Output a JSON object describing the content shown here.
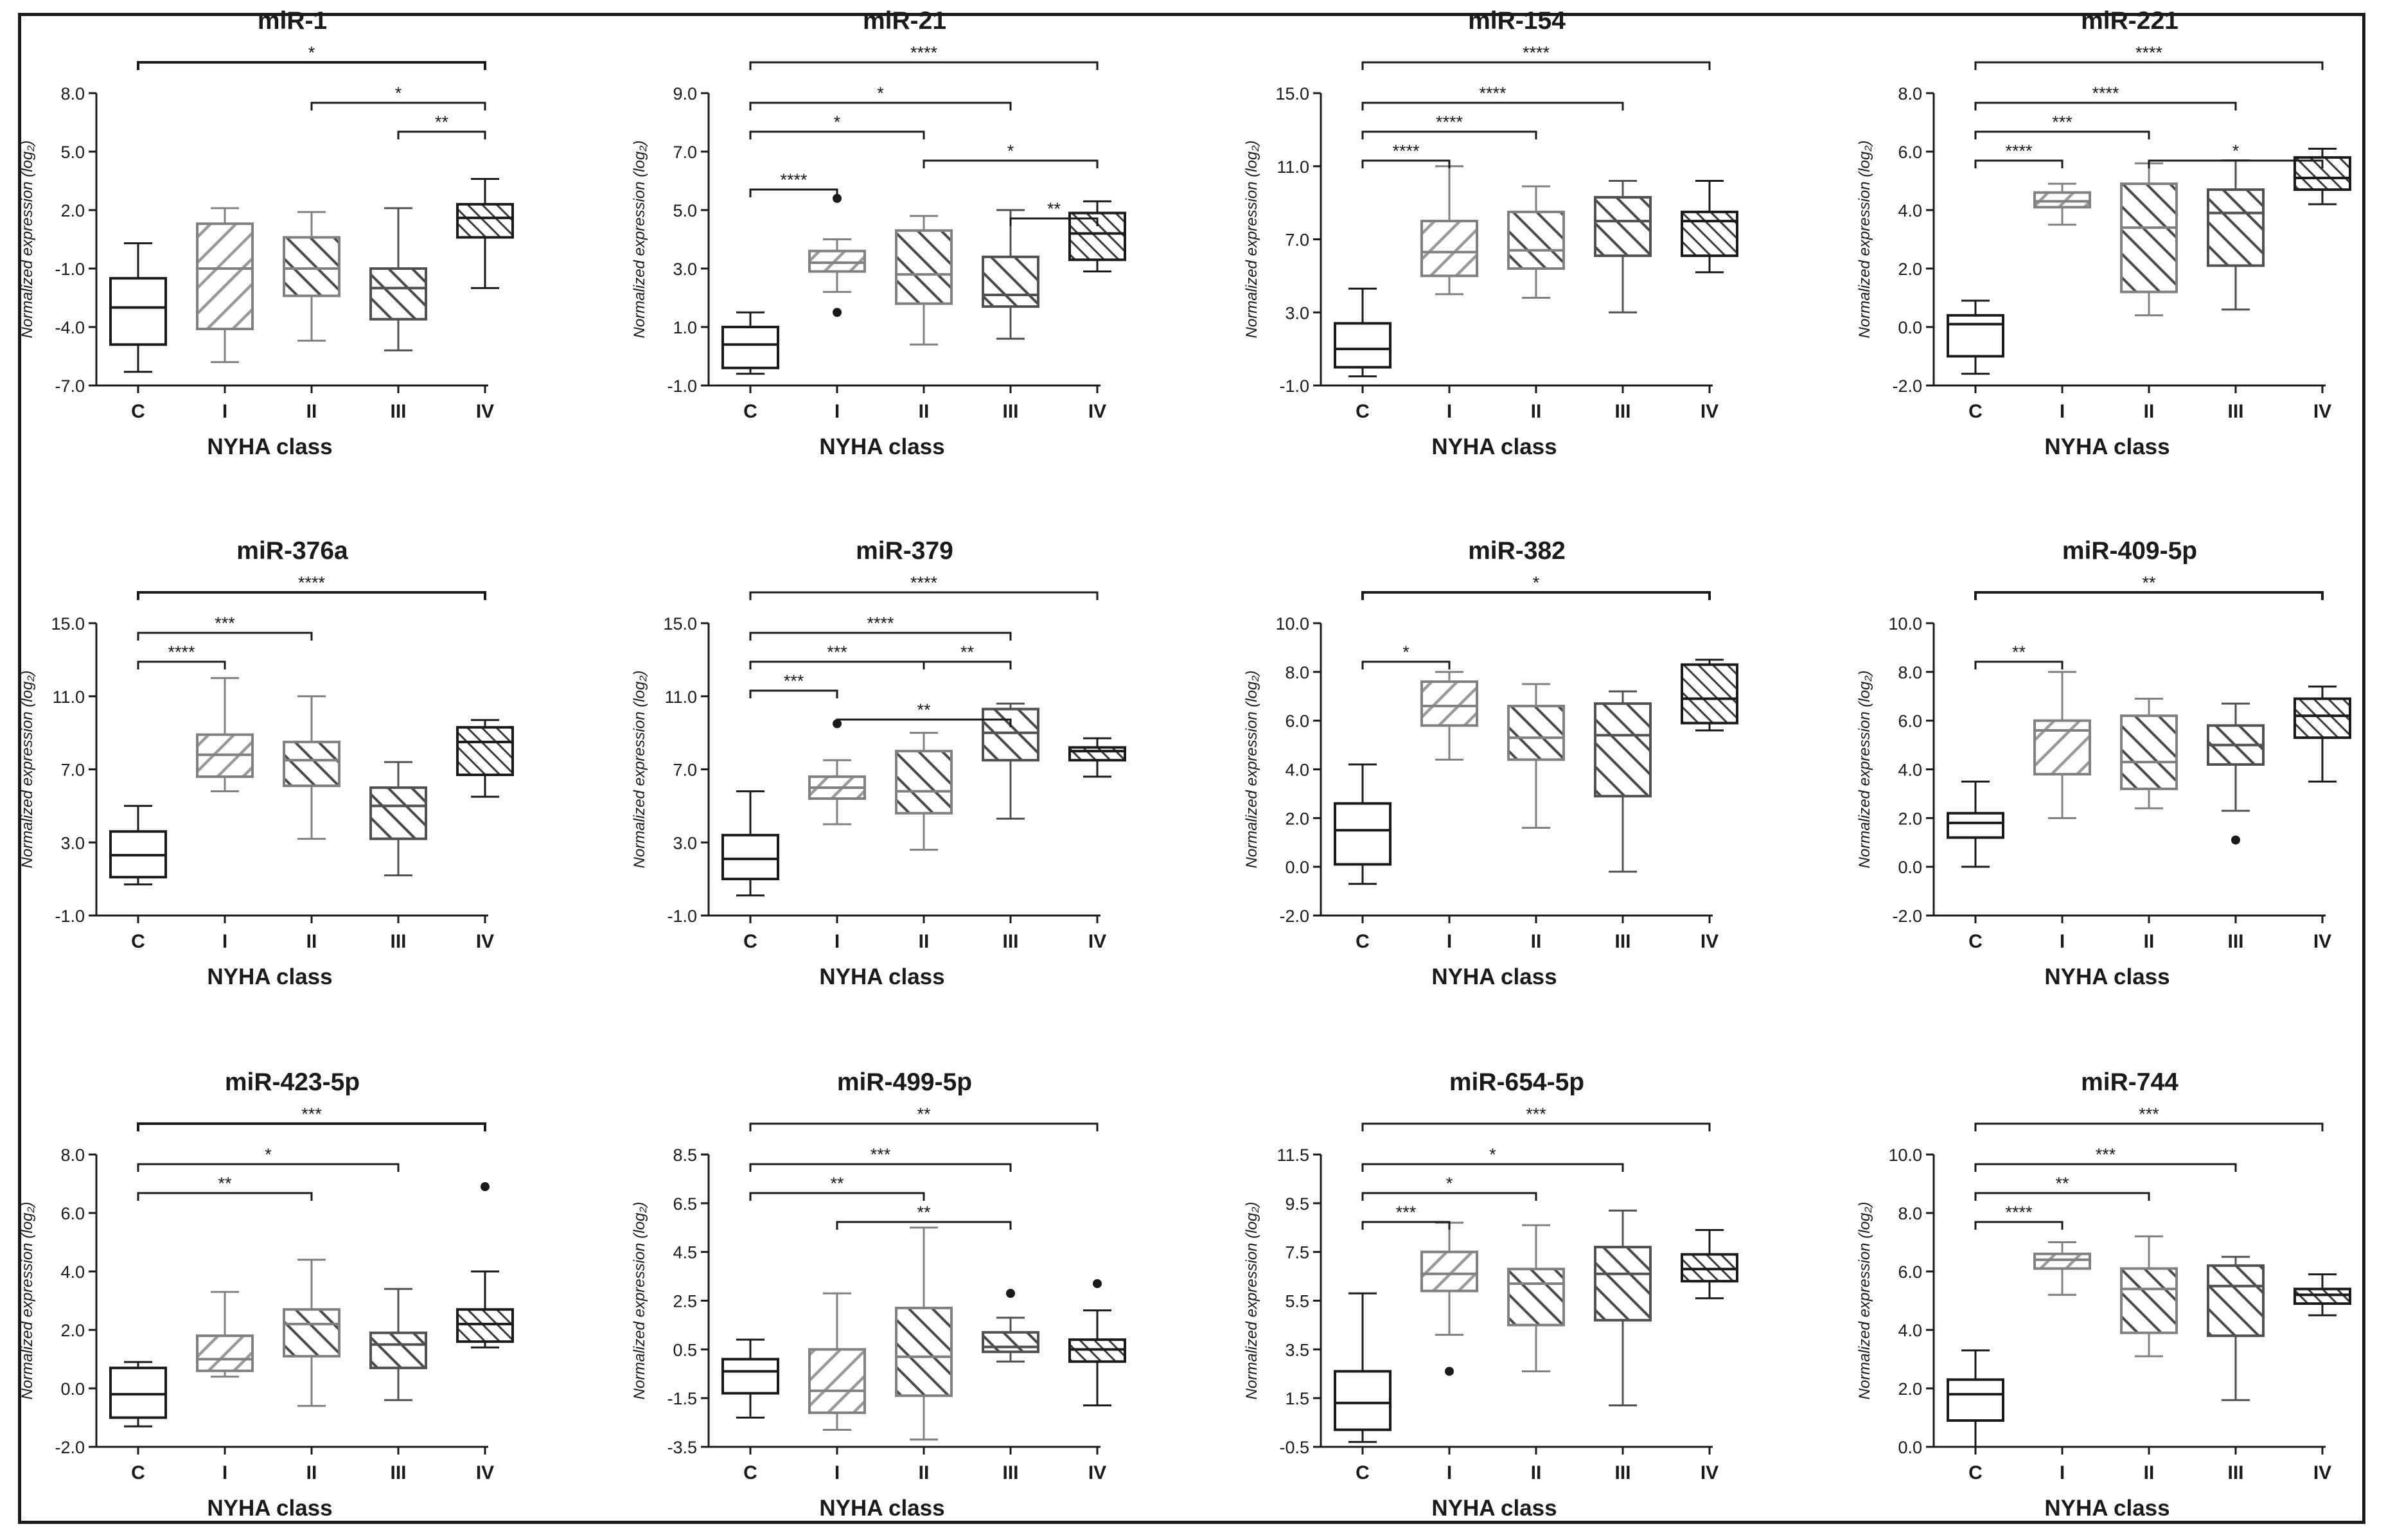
{
  "figure": {
    "colors": {
      "ink": "#1a1a1a",
      "gray": "#808080",
      "hatch": "#3a3a3a"
    }
  },
  "chart_data": [
    {
      "type": "box",
      "title": "miR-1",
      "xlabel": "NYHA class",
      "ylabel": "Normalized expression (log₂)",
      "categories": [
        "C",
        "I",
        "II",
        "III",
        "IV"
      ],
      "yticks": [
        "-7.0",
        "-4.0",
        "-1.0",
        "2.0",
        "5.0",
        "8.0"
      ],
      "ylim": [
        -7,
        8
      ],
      "boxes": [
        {
          "min": -6.3,
          "q1": -4.9,
          "median": -3.0,
          "q3": -1.5,
          "max": 0.3
        },
        {
          "min": -5.8,
          "q1": -4.1,
          "median": -1.0,
          "q3": 1.3,
          "max": 2.1
        },
        {
          "min": -4.7,
          "q1": -2.4,
          "median": -1.0,
          "q3": 0.6,
          "max": 1.9
        },
        {
          "min": -5.2,
          "q1": -3.6,
          "median": -2.0,
          "q3": -1.0,
          "max": 2.1
        },
        {
          "min": -2.0,
          "q1": 0.6,
          "median": 1.6,
          "q3": 2.3,
          "max": 3.6
        }
      ],
      "outliers": [],
      "comparisons": [
        {
          "from": 0,
          "to": 4,
          "label": "*",
          "tier": 0
        },
        {
          "from": 2,
          "to": 4,
          "label": "*",
          "tier": 1
        },
        {
          "from": 3,
          "to": 4,
          "label": "**",
          "tier": 2
        }
      ]
    },
    {
      "type": "box",
      "title": "miR-21",
      "xlabel": "NYHA class",
      "ylabel": "Normalized expression (log₂)",
      "categories": [
        "C",
        "I",
        "II",
        "III",
        "IV"
      ],
      "yticks": [
        "-1.0",
        "1.0",
        "3.0",
        "5.0",
        "7.0",
        "9.0"
      ],
      "ylim": [
        -1,
        9
      ],
      "boxes": [
        {
          "min": -0.6,
          "q1": -0.4,
          "median": 0.4,
          "q3": 1.0,
          "max": 1.5
        },
        {
          "min": 2.2,
          "q1": 2.9,
          "median": 3.2,
          "q3": 3.6,
          "max": 4.0
        },
        {
          "min": 0.4,
          "q1": 1.8,
          "median": 2.8,
          "q3": 4.3,
          "max": 4.8
        },
        {
          "min": 0.6,
          "q1": 1.7,
          "median": 2.1,
          "q3": 3.4,
          "max": 5.0
        },
        {
          "min": 2.9,
          "q1": 3.3,
          "median": 4.2,
          "q3": 4.9,
          "max": 5.3
        }
      ],
      "outliers": [
        {
          "cat": 1,
          "value": 5.4
        },
        {
          "cat": 1,
          "value": 1.5
        }
      ],
      "comparisons": [
        {
          "from": 0,
          "to": 4,
          "label": "****",
          "tier": 0
        },
        {
          "from": 0,
          "to": 3,
          "label": "*",
          "tier": 1
        },
        {
          "from": 0,
          "to": 2,
          "label": "*",
          "tier": 2
        },
        {
          "from": 2,
          "to": 4,
          "label": "*",
          "tier": 3
        },
        {
          "from": 0,
          "to": 1,
          "label": "****",
          "tier": 4
        },
        {
          "from": 3,
          "to": 4,
          "label": "**",
          "tier": 5
        }
      ]
    },
    {
      "type": "box",
      "title": "miR-154",
      "xlabel": "NYHA class",
      "ylabel": "Normalized expression (log₂)",
      "categories": [
        "C",
        "I",
        "II",
        "III",
        "IV"
      ],
      "yticks": [
        "-1.0",
        "3.0",
        "7.0",
        "11.0",
        "15.0"
      ],
      "ylim": [
        -1,
        15
      ],
      "boxes": [
        {
          "min": -0.5,
          "q1": 0.0,
          "median": 1.0,
          "q3": 2.4,
          "max": 4.3
        },
        {
          "min": 4.0,
          "q1": 5.0,
          "median": 6.3,
          "q3": 8.0,
          "max": 11.0
        },
        {
          "min": 3.8,
          "q1": 5.4,
          "median": 6.4,
          "q3": 8.5,
          "max": 9.9
        },
        {
          "min": 3.0,
          "q1": 6.1,
          "median": 8.0,
          "q3": 9.3,
          "max": 10.2
        },
        {
          "min": 5.2,
          "q1": 6.1,
          "median": 8.0,
          "q3": 8.5,
          "max": 10.2
        }
      ],
      "outliers": [],
      "comparisons": [
        {
          "from": 0,
          "to": 4,
          "label": "****",
          "tier": 0
        },
        {
          "from": 0,
          "to": 3,
          "label": "****",
          "tier": 1
        },
        {
          "from": 0,
          "to": 2,
          "label": "****",
          "tier": 2
        },
        {
          "from": 0,
          "to": 1,
          "label": "****",
          "tier": 3
        }
      ]
    },
    {
      "type": "box",
      "title": "miR-221",
      "xlabel": "NYHA class",
      "ylabel": "Normalized expression (log₂)",
      "categories": [
        "C",
        "I",
        "II",
        "III",
        "IV"
      ],
      "yticks": [
        "-2.0",
        "0.0",
        "2.0",
        "4.0",
        "6.0",
        "8.0"
      ],
      "ylim": [
        -2,
        8
      ],
      "boxes": [
        {
          "min": -1.6,
          "q1": -1.0,
          "median": 0.1,
          "q3": 0.4,
          "max": 0.9
        },
        {
          "min": 3.5,
          "q1": 4.1,
          "median": 4.3,
          "q3": 4.6,
          "max": 4.9
        },
        {
          "min": 0.4,
          "q1": 1.2,
          "median": 3.4,
          "q3": 4.9,
          "max": 5.6
        },
        {
          "min": 0.6,
          "q1": 2.1,
          "median": 3.9,
          "q3": 4.7,
          "max": 5.7
        },
        {
          "min": 4.2,
          "q1": 4.7,
          "median": 5.1,
          "q3": 5.8,
          "max": 6.1
        }
      ],
      "outliers": [],
      "comparisons": [
        {
          "from": 0,
          "to": 4,
          "label": "****",
          "tier": 0
        },
        {
          "from": 0,
          "to": 3,
          "label": "****",
          "tier": 1
        },
        {
          "from": 0,
          "to": 2,
          "label": "***",
          "tier": 2
        },
        {
          "from": 2,
          "to": 4,
          "label": "*",
          "tier": 3
        },
        {
          "from": 0,
          "to": 1,
          "label": "****",
          "tier": 3
        }
      ]
    },
    {
      "type": "box",
      "title": "miR-376a",
      "xlabel": "NYHA class",
      "ylabel": "Normalized expression (log₂)",
      "categories": [
        "C",
        "I",
        "II",
        "III",
        "IV"
      ],
      "yticks": [
        "-1.0",
        "3.0",
        "7.0",
        "11.0",
        "15.0"
      ],
      "ylim": [
        -1,
        15
      ],
      "boxes": [
        {
          "min": 0.7,
          "q1": 1.1,
          "median": 2.3,
          "q3": 3.6,
          "max": 5.0
        },
        {
          "min": 5.8,
          "q1": 6.6,
          "median": 7.8,
          "q3": 8.9,
          "max": 12.0
        },
        {
          "min": 3.2,
          "q1": 6.1,
          "median": 7.5,
          "q3": 8.5,
          "max": 11.0
        },
        {
          "min": 1.2,
          "q1": 3.2,
          "median": 5.0,
          "q3": 6.0,
          "max": 7.4
        },
        {
          "min": 5.5,
          "q1": 6.7,
          "median": 8.5,
          "q3": 9.3,
          "max": 9.7
        }
      ],
      "outliers": [],
      "comparisons": [
        {
          "from": 0,
          "to": 4,
          "label": "****",
          "tier": 0
        },
        {
          "from": 0,
          "to": 2,
          "label": "***",
          "tier": 1
        },
        {
          "from": 0,
          "to": 1,
          "label": "****",
          "tier": 2
        }
      ]
    },
    {
      "type": "box",
      "title": "miR-379",
      "xlabel": "NYHA class",
      "ylabel": "Normalized expression (log₂)",
      "categories": [
        "C",
        "I",
        "II",
        "III",
        "IV"
      ],
      "yticks": [
        "-1.0",
        "3.0",
        "7.0",
        "11.0",
        "15.0"
      ],
      "ylim": [
        -1,
        15
      ],
      "boxes": [
        {
          "min": 0.1,
          "q1": 1.0,
          "median": 2.1,
          "q3": 3.4,
          "max": 5.8
        },
        {
          "min": 4.0,
          "q1": 5.4,
          "median": 6.0,
          "q3": 6.6,
          "max": 7.5
        },
        {
          "min": 2.6,
          "q1": 4.6,
          "median": 5.8,
          "q3": 8.0,
          "max": 9.0
        },
        {
          "min": 4.3,
          "q1": 7.5,
          "median": 9.0,
          "q3": 10.3,
          "max": 10.6
        },
        {
          "min": 6.6,
          "q1": 7.5,
          "median": 8.0,
          "q3": 8.2,
          "max": 8.7
        }
      ],
      "outliers": [
        {
          "cat": 1,
          "value": 9.5
        }
      ],
      "comparisons": [
        {
          "from": 0,
          "to": 4,
          "label": "****",
          "tier": 0
        },
        {
          "from": 0,
          "to": 3,
          "label": "****",
          "tier": 1
        },
        {
          "from": 0,
          "to": 2,
          "label": "***",
          "tier": 2
        },
        {
          "from": 2,
          "to": 3,
          "label": "**",
          "tier": 2
        },
        {
          "from": 0,
          "to": 1,
          "label": "***",
          "tier": 3
        },
        {
          "from": 1,
          "to": 3,
          "label": "**",
          "tier": 4
        }
      ]
    },
    {
      "type": "box",
      "title": "miR-382",
      "xlabel": "NYHA class",
      "ylabel": "Normalized expression (log₂)",
      "categories": [
        "C",
        "I",
        "II",
        "III",
        "IV"
      ],
      "yticks": [
        "-2.0",
        "0.0",
        "2.0",
        "4.0",
        "6.0",
        "8.0",
        "10.0"
      ],
      "ylim": [
        -2,
        10
      ],
      "boxes": [
        {
          "min": -0.7,
          "q1": 0.1,
          "median": 1.5,
          "q3": 2.6,
          "max": 4.2
        },
        {
          "min": 4.4,
          "q1": 5.8,
          "median": 6.6,
          "q3": 7.6,
          "max": 8.0
        },
        {
          "min": 1.6,
          "q1": 4.4,
          "median": 5.3,
          "q3": 6.6,
          "max": 7.5
        },
        {
          "min": -0.2,
          "q1": 2.9,
          "median": 5.4,
          "q3": 6.7,
          "max": 7.2
        },
        {
          "min": 5.6,
          "q1": 5.9,
          "median": 6.9,
          "q3": 8.3,
          "max": 8.5
        }
      ],
      "outliers": [],
      "comparisons": [
        {
          "from": 0,
          "to": 4,
          "label": "*",
          "tier": 0
        },
        {
          "from": 0,
          "to": 1,
          "label": "*",
          "tier": 2
        }
      ]
    },
    {
      "type": "box",
      "title": "miR-409-5p",
      "xlabel": "NYHA class",
      "ylabel": "Normalized expression (log₂)",
      "categories": [
        "C",
        "I",
        "II",
        "III",
        "IV"
      ],
      "yticks": [
        "-2.0",
        "0.0",
        "2.0",
        "4.0",
        "6.0",
        "8.0",
        "10.0"
      ],
      "ylim": [
        -2,
        10
      ],
      "boxes": [
        {
          "min": 0.0,
          "q1": 1.2,
          "median": 1.8,
          "q3": 2.2,
          "max": 3.5
        },
        {
          "min": 2.0,
          "q1": 3.8,
          "median": 5.6,
          "q3": 6.0,
          "max": 8.0
        },
        {
          "min": 2.4,
          "q1": 3.2,
          "median": 4.3,
          "q3": 6.2,
          "max": 6.9
        },
        {
          "min": 2.3,
          "q1": 4.2,
          "median": 5.0,
          "q3": 5.8,
          "max": 6.7
        },
        {
          "min": 3.5,
          "q1": 5.3,
          "median": 6.2,
          "q3": 6.9,
          "max": 7.4
        }
      ],
      "outliers": [
        {
          "cat": 3,
          "value": 1.1
        }
      ],
      "comparisons": [
        {
          "from": 0,
          "to": 4,
          "label": "**",
          "tier": 0
        },
        {
          "from": 0,
          "to": 1,
          "label": "**",
          "tier": 2
        }
      ]
    },
    {
      "type": "box",
      "title": "miR-423-5p",
      "xlabel": "NYHA class",
      "ylabel": "Normalized expression (log₂)",
      "categories": [
        "C",
        "I",
        "II",
        "III",
        "IV"
      ],
      "yticks": [
        "-2.0",
        "0.0",
        "2.0",
        "4.0",
        "6.0",
        "8.0"
      ],
      "ylim": [
        -2,
        8
      ],
      "boxes": [
        {
          "min": -1.3,
          "q1": -1.0,
          "median": -0.2,
          "q3": 0.7,
          "max": 0.9
        },
        {
          "min": 0.4,
          "q1": 0.6,
          "median": 1.0,
          "q3": 1.8,
          "max": 3.3
        },
        {
          "min": -0.6,
          "q1": 1.1,
          "median": 2.2,
          "q3": 2.7,
          "max": 4.4
        },
        {
          "min": -0.4,
          "q1": 0.7,
          "median": 1.5,
          "q3": 1.9,
          "max": 3.4
        },
        {
          "min": 1.4,
          "q1": 1.6,
          "median": 2.2,
          "q3": 2.7,
          "max": 4.0
        }
      ],
      "outliers": [
        {
          "cat": 4,
          "value": 6.9
        }
      ],
      "comparisons": [
        {
          "from": 0,
          "to": 4,
          "label": "***",
          "tier": 0
        },
        {
          "from": 0,
          "to": 3,
          "label": "*",
          "tier": 1
        },
        {
          "from": 0,
          "to": 2,
          "label": "**",
          "tier": 2
        }
      ]
    },
    {
      "type": "box",
      "title": "miR-499-5p",
      "xlabel": "NYHA class",
      "ylabel": "Normalized expression (log₂)",
      "categories": [
        "C",
        "I",
        "II",
        "III",
        "IV"
      ],
      "yticks": [
        "-3.5",
        "-1.5",
        "0.5",
        "2.5",
        "4.5",
        "6.5",
        "8.5"
      ],
      "ylim": [
        -3.5,
        8.5
      ],
      "boxes": [
        {
          "min": -2.3,
          "q1": -1.3,
          "median": -0.4,
          "q3": 0.1,
          "max": 0.9
        },
        {
          "min": -2.8,
          "q1": -2.1,
          "median": -1.2,
          "q3": 0.5,
          "max": 2.8
        },
        {
          "min": -3.2,
          "q1": -1.4,
          "median": 0.2,
          "q3": 2.2,
          "max": 5.5
        },
        {
          "min": 0.0,
          "q1": 0.4,
          "median": 0.6,
          "q3": 1.2,
          "max": 1.8
        },
        {
          "min": -1.8,
          "q1": 0.0,
          "median": 0.5,
          "q3": 0.9,
          "max": 2.1
        }
      ],
      "outliers": [
        {
          "cat": 3,
          "value": 2.8
        },
        {
          "cat": 4,
          "value": 3.2
        }
      ],
      "comparisons": [
        {
          "from": 0,
          "to": 4,
          "label": "**",
          "tier": 0
        },
        {
          "from": 0,
          "to": 3,
          "label": "***",
          "tier": 1
        },
        {
          "from": 0,
          "to": 2,
          "label": "**",
          "tier": 2
        },
        {
          "from": 1,
          "to": 3,
          "label": "**",
          "tier": 3
        }
      ]
    },
    {
      "type": "box",
      "title": "miR-654-5p",
      "xlabel": "NYHA class",
      "ylabel": "Normalized expression (log₂)",
      "categories": [
        "C",
        "I",
        "II",
        "III",
        "IV"
      ],
      "yticks": [
        "-0.5",
        "1.5",
        "3.5",
        "5.5",
        "7.5",
        "9.5",
        "11.5"
      ],
      "ylim": [
        -0.5,
        11.5
      ],
      "boxes": [
        {
          "min": -0.3,
          "q1": 0.2,
          "median": 1.3,
          "q3": 2.6,
          "max": 5.8
        },
        {
          "min": 4.1,
          "q1": 5.9,
          "median": 6.6,
          "q3": 7.5,
          "max": 8.7
        },
        {
          "min": 2.6,
          "q1": 4.5,
          "median": 6.2,
          "q3": 6.8,
          "max": 8.6
        },
        {
          "min": 1.2,
          "q1": 4.7,
          "median": 6.6,
          "q3": 7.7,
          "max": 9.2
        },
        {
          "min": 5.6,
          "q1": 6.3,
          "median": 6.8,
          "q3": 7.4,
          "max": 8.4
        }
      ],
      "outliers": [
        {
          "cat": 1,
          "value": 2.6
        }
      ],
      "comparisons": [
        {
          "from": 0,
          "to": 4,
          "label": "***",
          "tier": 0
        },
        {
          "from": 0,
          "to": 3,
          "label": "*",
          "tier": 1
        },
        {
          "from": 0,
          "to": 2,
          "label": "*",
          "tier": 2
        },
        {
          "from": 0,
          "to": 1,
          "label": "***",
          "tier": 3
        }
      ]
    },
    {
      "type": "box",
      "title": "miR-744",
      "xlabel": "NYHA class",
      "ylabel": "Normalized expression (log₂)",
      "categories": [
        "C",
        "I",
        "II",
        "III",
        "IV"
      ],
      "yticks": [
        "0.0",
        "2.0",
        "4.0",
        "6.0",
        "8.0",
        "10.0"
      ],
      "ylim": [
        0,
        10
      ],
      "boxes": [
        {
          "min": 0.0,
          "q1": 0.9,
          "median": 1.8,
          "q3": 2.3,
          "max": 3.3
        },
        {
          "min": 5.2,
          "q1": 6.1,
          "median": 6.4,
          "q3": 6.6,
          "max": 7.0
        },
        {
          "min": 3.1,
          "q1": 3.9,
          "median": 5.4,
          "q3": 6.1,
          "max": 7.2
        },
        {
          "min": 1.6,
          "q1": 3.8,
          "median": 5.5,
          "q3": 6.2,
          "max": 6.5
        },
        {
          "min": 4.5,
          "q1": 4.9,
          "median": 5.2,
          "q3": 5.4,
          "max": 5.9
        }
      ],
      "outliers": [],
      "comparisons": [
        {
          "from": 0,
          "to": 4,
          "label": "***",
          "tier": 0
        },
        {
          "from": 0,
          "to": 3,
          "label": "***",
          "tier": 1
        },
        {
          "from": 0,
          "to": 2,
          "label": "**",
          "tier": 2
        },
        {
          "from": 0,
          "to": 1,
          "label": "****",
          "tier": 3
        }
      ]
    }
  ]
}
